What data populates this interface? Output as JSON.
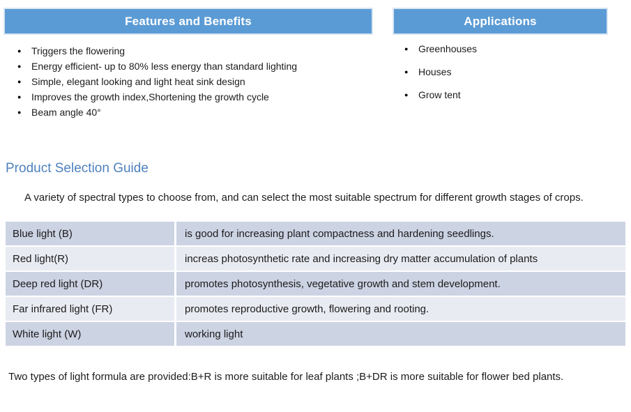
{
  "icons": {
    "bullet": "●"
  },
  "colors": {
    "header_bar": "#5b9bd5",
    "header_bar_outline": "#d8e6f3",
    "heading_text": "#4e81bd",
    "table_row_dark": "#ccd3e3",
    "table_row_light": "#e9ebf2",
    "body_text": "#1b1b1b",
    "header_text": "#ffffff"
  },
  "features": {
    "title": "Features and Benefits",
    "items": [
      "Triggers the flowering",
      "Energy efficient- up to 80% less energy than standard lighting",
      "Simple, elegant looking and light heat sink design",
      "Improves the growth index,Shortening the growth cycle",
      "Beam angle 40°"
    ]
  },
  "applications": {
    "title": "Applications",
    "items": [
      "Greenhouses",
      "Houses",
      "Grow tent"
    ]
  },
  "selection_guide": {
    "heading": "Product Selection Guide",
    "intro": "A variety of spectral types to choose from, and can select the most suitable spectrum for different growth stages of crops.",
    "table": {
      "rows": [
        {
          "light": "Blue light (B)",
          "description": "is good for increasing plant compactness and hardening seedlings."
        },
        {
          "light": "Red light(R)",
          "description": "increas photosynthetic rate and increasing dry matter accumulation of plants"
        },
        {
          "light": "Deep red light (DR)",
          "description": "promotes photosynthesis, vegetative growth and stem development."
        },
        {
          "light": "Far infrared light (FR)",
          "description": "promotes reproductive growth, flowering and rooting."
        },
        {
          "light": "White light (W)",
          "description": "working light"
        }
      ]
    },
    "footer_note": "Two types of light formula are provided:B+R is more suitable for leaf plants ;B+DR is more suitable for flower bed plants."
  }
}
